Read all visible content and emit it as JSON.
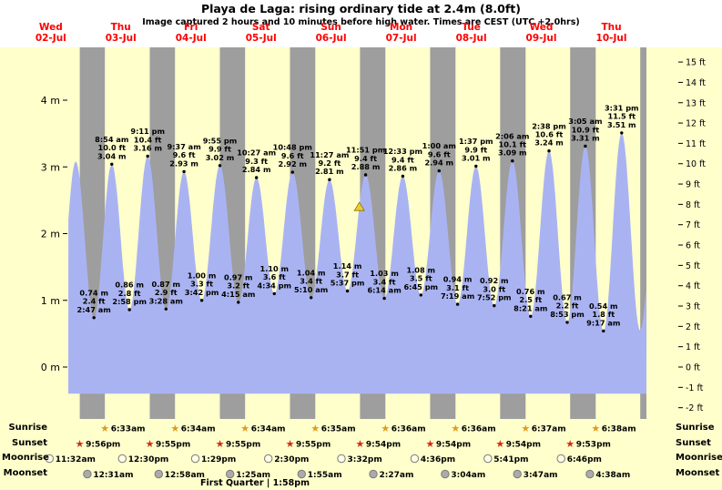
{
  "title": "Playa de Laga: rising  ordinary tide at 2.4m (8.0ft)",
  "subtitle": "Image captured 2 hours and 10 minutes before high water. Times are CEST (UTC +2.0hrs)",
  "colors": {
    "page_bg": "#ffffcc",
    "header_bg": "#ffffff",
    "night_band": "#9e9e9e",
    "tide_fill": "#aab3f2",
    "day_label": "#ff0000",
    "marker": "#eecb2d",
    "sunrise_icon": "#dd9b1f",
    "sunset_icon": "#cf2e15",
    "moonrise_icon": "#ffffe6",
    "moonset_icon": "#ababab"
  },
  "days": [
    {
      "day": 2,
      "name": "Wed",
      "date": "02-Jul"
    },
    {
      "day": 3,
      "name": "Thu",
      "date": "03-Jul"
    },
    {
      "day": 4,
      "name": "Fri",
      "date": "04-Jul"
    },
    {
      "day": 5,
      "name": "Sat",
      "date": "05-Jul"
    },
    {
      "day": 6,
      "name": "Sun",
      "date": "06-Jul"
    },
    {
      "day": 7,
      "name": "Mon",
      "date": "07-Jul"
    },
    {
      "day": 8,
      "name": "Tue",
      "date": "08-Jul"
    },
    {
      "day": 9,
      "name": "Wed",
      "date": "09-Jul"
    },
    {
      "day": 10,
      "name": "Thu",
      "date": "10-Jul"
    }
  ],
  "axes": {
    "left_unit": "m",
    "right_unit": "ft",
    "left_labels": [
      "0 m",
      "1 m",
      "2 m",
      "3 m",
      "4 m"
    ],
    "right_labels": [
      "-2 ft",
      "-1 ft",
      "0 ft",
      "1 ft",
      "2 ft",
      "3 ft",
      "4 ft",
      "5 ft",
      "6 ft",
      "7 ft",
      "8 ft",
      "9 ft",
      "10 ft",
      "11 ft",
      "12 ft",
      "13 ft",
      "14 ft",
      "15 ft"
    ]
  },
  "chart_data": {
    "type": "area",
    "x_range": {
      "start_day": 2,
      "start_time": "18:00",
      "end_day": 11,
      "end_time": "00:00"
    },
    "ylim_m": [
      -0.75,
      4.95
    ],
    "baseline_m": -0.4,
    "grid": "off",
    "extremes": [
      {
        "day": 2,
        "time": "14:30",
        "height_m": 0.72,
        "kind": "low",
        "label": null
      },
      {
        "day": 2,
        "time": "20:33",
        "height_m": 3.08,
        "kind": "high",
        "label": null
      },
      {
        "day": 3,
        "time": "02:47",
        "height_m": 0.74,
        "kind": "low",
        "label": [
          "0.74 m",
          "2.4 ft",
          "2:47 am"
        ]
      },
      {
        "day": 3,
        "time": "08:54",
        "height_m": 3.04,
        "kind": "high",
        "label": [
          "8:54 am",
          "10.0 ft",
          "3.04 m"
        ]
      },
      {
        "day": 3,
        "time": "14:58",
        "height_m": 0.86,
        "kind": "low",
        "label": [
          "0.86 m",
          "2.8 ft",
          "2:58 pm"
        ]
      },
      {
        "day": 3,
        "time": "21:11",
        "height_m": 3.16,
        "kind": "high",
        "label": [
          "9:11 pm",
          "10.4 ft",
          "3.16 m"
        ]
      },
      {
        "day": 4,
        "time": "03:28",
        "height_m": 0.87,
        "kind": "low",
        "label": [
          "0.87 m",
          "2.9 ft",
          "3:28 am"
        ]
      },
      {
        "day": 4,
        "time": "09:37",
        "height_m": 2.93,
        "kind": "high",
        "label": [
          "9:37 am",
          "9.6 ft",
          "2.93 m"
        ]
      },
      {
        "day": 4,
        "time": "15:42",
        "height_m": 1.0,
        "kind": "low",
        "label": [
          "1.00 m",
          "3.3 ft",
          "3:42 pm"
        ]
      },
      {
        "day": 4,
        "time": "21:55",
        "height_m": 3.02,
        "kind": "high",
        "label": [
          "9:55 pm",
          "9.9 ft",
          "3.02 m"
        ]
      },
      {
        "day": 5,
        "time": "04:15",
        "height_m": 0.97,
        "kind": "low",
        "label": [
          "0.97 m",
          "3.2 ft",
          "4:15 am"
        ]
      },
      {
        "day": 5,
        "time": "10:27",
        "height_m": 2.84,
        "kind": "high",
        "label": [
          "10:27 am",
          "9.3 ft",
          "2.84 m"
        ]
      },
      {
        "day": 5,
        "time": "16:34",
        "height_m": 1.1,
        "kind": "low",
        "label": [
          "1.10 m",
          "3.6 ft",
          "4:34 pm"
        ]
      },
      {
        "day": 5,
        "time": "22:48",
        "height_m": 2.92,
        "kind": "high",
        "label": [
          "10:48 pm",
          "9.6 ft",
          "2.92 m"
        ]
      },
      {
        "day": 6,
        "time": "05:10",
        "height_m": 1.04,
        "kind": "low",
        "label": [
          "1.04 m",
          "3.4 ft",
          "5:10 am"
        ]
      },
      {
        "day": 6,
        "time": "11:27",
        "height_m": 2.81,
        "kind": "high",
        "label": [
          "11:27 am",
          "9.2 ft",
          "2.81 m"
        ]
      },
      {
        "day": 6,
        "time": "17:37",
        "height_m": 1.14,
        "kind": "low",
        "label": [
          "1.14 m",
          "3.7 ft",
          "5:37 pm"
        ]
      },
      {
        "day": 6,
        "time": "23:51",
        "height_m": 2.88,
        "kind": "high",
        "label": [
          "11:51 pm",
          "9.4 ft",
          "2.88 m"
        ]
      },
      {
        "day": 7,
        "time": "06:14",
        "height_m": 1.03,
        "kind": "low",
        "label": [
          "1.03 m",
          "3.4 ft",
          "6:14 am"
        ]
      },
      {
        "day": 7,
        "time": "12:33",
        "height_m": 2.86,
        "kind": "high",
        "label": [
          "12:33 pm",
          "9.4 ft",
          "2.86 m"
        ]
      },
      {
        "day": 7,
        "time": "18:45",
        "height_m": 1.08,
        "kind": "low",
        "label": [
          "1.08 m",
          "3.5 ft",
          "6:45 pm"
        ]
      },
      {
        "day": 8,
        "time": "01:00",
        "height_m": 2.94,
        "kind": "high",
        "label": [
          "1:00 am",
          "9.6 ft",
          "2.94 m"
        ]
      },
      {
        "day": 8,
        "time": "07:19",
        "height_m": 0.94,
        "kind": "low",
        "label": [
          "0.94 m",
          "3.1 ft",
          "7:19 am"
        ]
      },
      {
        "day": 8,
        "time": "13:37",
        "height_m": 3.01,
        "kind": "high",
        "label": [
          "1:37 pm",
          "9.9 ft",
          "3.01 m"
        ]
      },
      {
        "day": 8,
        "time": "19:52",
        "height_m": 0.92,
        "kind": "low",
        "label": [
          "0.92 m",
          "3.0 ft",
          "7:52 pm"
        ]
      },
      {
        "day": 9,
        "time": "02:06",
        "height_m": 3.09,
        "kind": "high",
        "label": [
          "2:06 am",
          "10.1 ft",
          "3.09 m"
        ]
      },
      {
        "day": 9,
        "time": "08:21",
        "height_m": 0.76,
        "kind": "low",
        "label": [
          "0.76 m",
          "2.5 ft",
          "8:21 am"
        ]
      },
      {
        "day": 9,
        "time": "14:38",
        "height_m": 3.24,
        "kind": "high",
        "label": [
          "2:38 pm",
          "10.6 ft",
          "3.24 m"
        ]
      },
      {
        "day": 9,
        "time": "20:53",
        "height_m": 0.67,
        "kind": "low",
        "label": [
          "0.67 m",
          "2.2 ft",
          "8:53 pm"
        ]
      },
      {
        "day": 10,
        "time": "03:05",
        "height_m": 3.31,
        "kind": "high",
        "label": [
          "3:05 am",
          "10.9 ft",
          "3.31 m"
        ]
      },
      {
        "day": 10,
        "time": "09:17",
        "height_m": 0.54,
        "kind": "low",
        "label": [
          "0.54 m",
          "1.8 ft",
          "9:17 am"
        ]
      },
      {
        "day": 10,
        "time": "15:31",
        "height_m": 3.51,
        "kind": "high",
        "label": [
          "3:31 pm",
          "11.5 ft",
          "3.51 m"
        ]
      },
      {
        "day": 10,
        "time": "21:50",
        "height_m": 0.55,
        "kind": "low",
        "label": null
      },
      {
        "day": 11,
        "time": "03:55",
        "height_m": 3.0,
        "kind": "high",
        "label": null
      }
    ],
    "current_tide_marker": {
      "day": 6,
      "time": "21:41",
      "height_m": 2.4
    },
    "night_bands": [
      {
        "from": {
          "day": 2,
          "time": "21:56"
        },
        "to": {
          "day": 3,
          "time": "06:33"
        }
      },
      {
        "from": {
          "day": 3,
          "time": "21:55"
        },
        "to": {
          "day": 4,
          "time": "06:34"
        }
      },
      {
        "from": {
          "day": 4,
          "time": "21:55"
        },
        "to": {
          "day": 5,
          "time": "06:34"
        }
      },
      {
        "from": {
          "day": 5,
          "time": "21:55"
        },
        "to": {
          "day": 6,
          "time": "06:35"
        }
      },
      {
        "from": {
          "day": 6,
          "time": "21:54"
        },
        "to": {
          "day": 7,
          "time": "06:36"
        }
      },
      {
        "from": {
          "day": 7,
          "time": "21:54"
        },
        "to": {
          "day": 8,
          "time": "06:36"
        }
      },
      {
        "from": {
          "day": 8,
          "time": "21:54"
        },
        "to": {
          "day": 9,
          "time": "06:37"
        }
      },
      {
        "from": {
          "day": 9,
          "time": "21:53"
        },
        "to": {
          "day": 10,
          "time": "06:38"
        }
      },
      {
        "from": {
          "day": 10,
          "time": "21:53"
        },
        "to": {
          "day": 11,
          "time": "00:00"
        }
      }
    ]
  },
  "astro": {
    "rows": [
      {
        "id": "sunrise",
        "label": "Sunrise",
        "icon": "star",
        "events": [
          {
            "day": 3,
            "time": "6:33am"
          },
          {
            "day": 4,
            "time": "6:34am"
          },
          {
            "day": 5,
            "time": "6:34am"
          },
          {
            "day": 6,
            "time": "6:35am"
          },
          {
            "day": 7,
            "time": "6:36am"
          },
          {
            "day": 8,
            "time": "6:36am"
          },
          {
            "day": 9,
            "time": "6:37am"
          },
          {
            "day": 10,
            "time": "6:38am"
          }
        ]
      },
      {
        "id": "sunset",
        "label": "Sunset",
        "icon": "star",
        "events": [
          {
            "day": 2,
            "time": "9:56pm"
          },
          {
            "day": 3,
            "time": "9:55pm"
          },
          {
            "day": 4,
            "time": "9:55pm"
          },
          {
            "day": 5,
            "time": "9:55pm"
          },
          {
            "day": 6,
            "time": "9:54pm"
          },
          {
            "day": 7,
            "time": "9:54pm"
          },
          {
            "day": 8,
            "time": "9:54pm"
          },
          {
            "day": 9,
            "time": "9:53pm"
          }
        ]
      },
      {
        "id": "moonrise",
        "label": "Moonrise",
        "icon": "circle",
        "events": [
          {
            "day": 2,
            "time": "11:32am"
          },
          {
            "day": 3,
            "time": "12:30pm"
          },
          {
            "day": 4,
            "time": "1:29pm"
          },
          {
            "day": 5,
            "time": "2:30pm"
          },
          {
            "day": 6,
            "time": "3:32pm"
          },
          {
            "day": 7,
            "time": "4:36pm"
          },
          {
            "day": 8,
            "time": "5:41pm"
          },
          {
            "day": 9,
            "time": "6:46pm"
          }
        ]
      },
      {
        "id": "moonset",
        "label": "Moonset",
        "icon": "circle",
        "events": [
          {
            "day": 3,
            "time": "12:31am"
          },
          {
            "day": 4,
            "time": "12:58am"
          },
          {
            "day": 5,
            "time": "1:25am"
          },
          {
            "day": 6,
            "time": "1:55am"
          },
          {
            "day": 7,
            "time": "2:27am"
          },
          {
            "day": 8,
            "time": "3:04am"
          },
          {
            "day": 9,
            "time": "3:47am"
          },
          {
            "day": 10,
            "time": "4:38am"
          }
        ]
      }
    ],
    "moon_phase": "First Quarter | 1:58pm"
  }
}
